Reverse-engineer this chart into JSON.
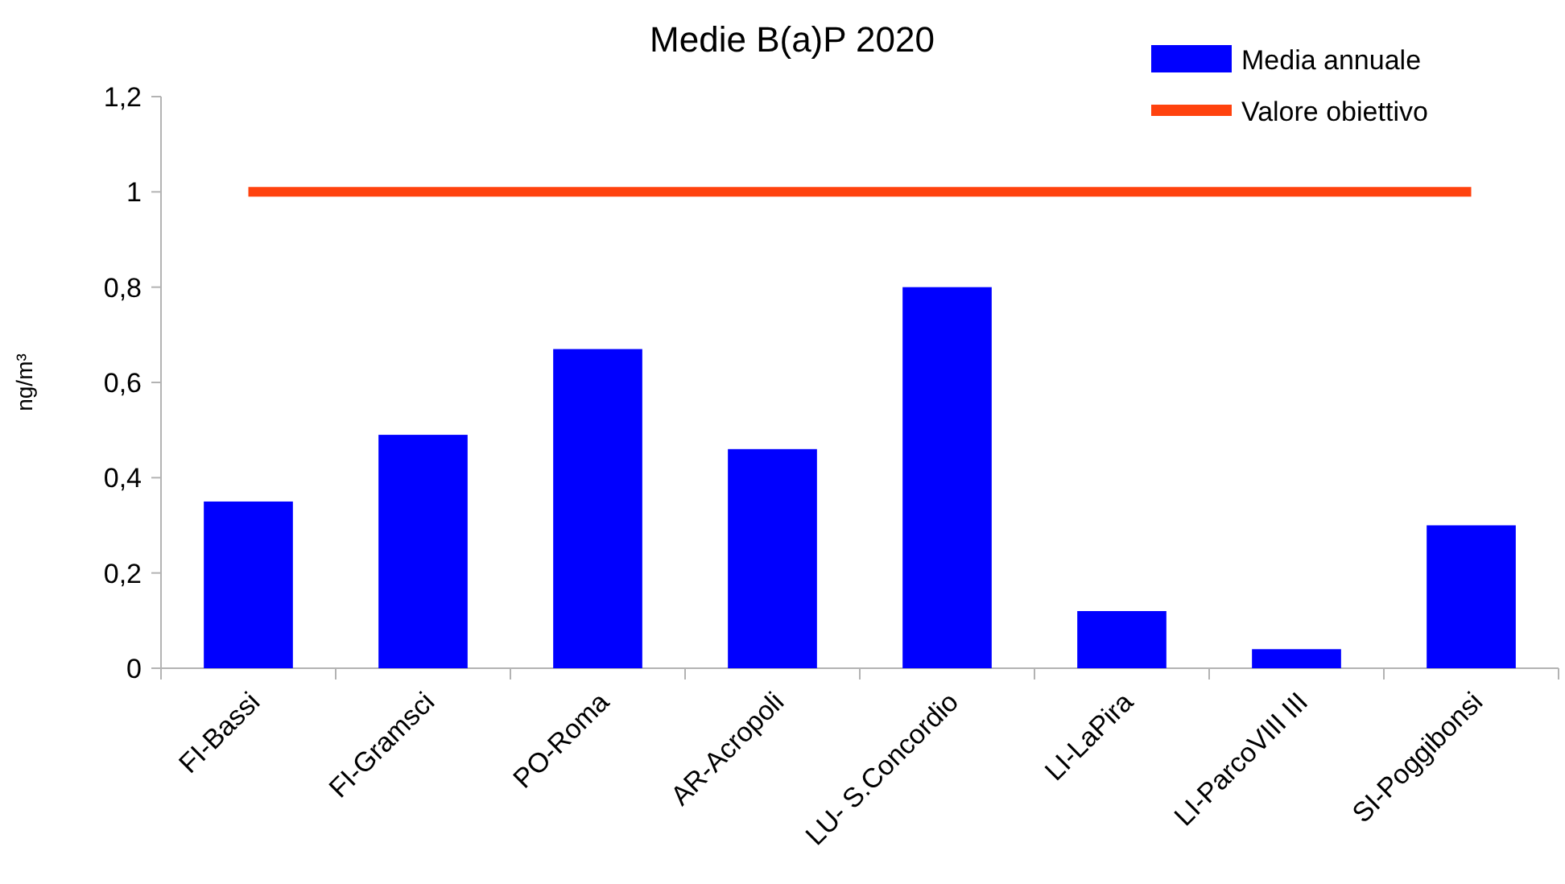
{
  "chart_data": {
    "type": "bar",
    "title": "Medie B(a)P 2020",
    "ylabel": "ng/m³",
    "categories": [
      "FI-Bassi",
      "FI-Gramsci",
      "PO-Roma",
      "AR-Acropoli",
      "LU- S.Concordio",
      "LI-LaPira",
      "LI-ParcoVIII III",
      "SI-Poggibonsi"
    ],
    "series": [
      {
        "name": "Media annuale",
        "color": "#0000ff",
        "values": [
          0.35,
          0.49,
          0.67,
          0.46,
          0.8,
          0.12,
          0.04,
          0.3
        ]
      },
      {
        "name": "Valore obiettivo",
        "type": "line",
        "color": "#ff420e",
        "values": [
          1,
          1,
          1,
          1,
          1,
          1,
          1,
          1
        ]
      }
    ],
    "ylim": [
      0,
      1.2
    ],
    "yticks": [
      {
        "value": 0,
        "label": "0"
      },
      {
        "value": 0.2,
        "label": "0,2"
      },
      {
        "value": 0.4,
        "label": "0,4"
      },
      {
        "value": 0.6,
        "label": "0,6"
      },
      {
        "value": 0.8,
        "label": "0,8"
      },
      {
        "value": 1,
        "label": "1"
      },
      {
        "value": 1.2,
        "label": "1,2"
      }
    ],
    "legend": "top right",
    "grid": false
  }
}
